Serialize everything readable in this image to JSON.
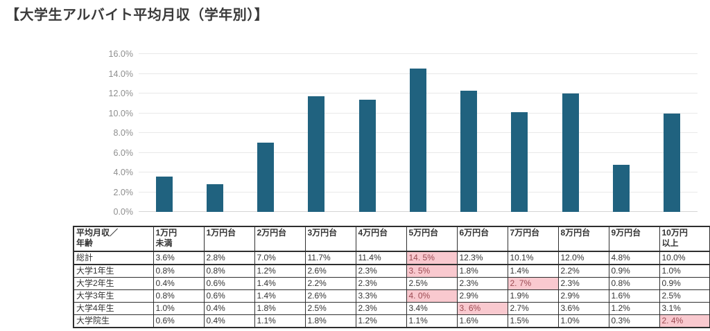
{
  "title": "【大学生アルバイト平均月収（学年別）】",
  "colors": {
    "bar": "#20627f",
    "grid": "#e8e8e8",
    "grid_baseline": "#d4d4d4",
    "axis_label": "#8e8e8e",
    "title_text": "#3a3a3a",
    "table_border": "#2e2e2e",
    "table_text": "#333333",
    "highlight_bg": "#f9c9cf",
    "highlight_text": "#9c4a52"
  },
  "chart_data": {
    "type": "bar",
    "title": "",
    "xlabel": "",
    "ylabel": "",
    "categories": [
      "1万円未満",
      "1万円台",
      "2万円台",
      "3万円台",
      "4万円台",
      "5万円台",
      "6万円台",
      "7万円台",
      "8万円台",
      "9万円台",
      "10万円以上"
    ],
    "values": [
      3.6,
      2.8,
      7.0,
      11.7,
      11.4,
      14.5,
      12.3,
      10.1,
      12.0,
      4.8,
      10.0
    ],
    "series_label": "総計",
    "ylim": [
      0,
      16
    ],
    "ytick_step": 2,
    "ytick_labels": [
      "0.0%",
      "2.0%",
      "4.0%",
      "6.0%",
      "8.0%",
      "10.0%",
      "12.0%",
      "14.0%",
      "16.0%"
    ],
    "grid": true,
    "legend": false
  },
  "table": {
    "header": [
      [
        "平均月収／",
        "年齢"
      ],
      [
        "1万円",
        "未満"
      ],
      [
        "1万円台"
      ],
      [
        "2万円台"
      ],
      [
        "3万円台"
      ],
      [
        "4万円台"
      ],
      [
        "5万円台"
      ],
      [
        "6万円台"
      ],
      [
        "7万円台"
      ],
      [
        "8万円台"
      ],
      [
        "9万円台"
      ],
      [
        "10万円",
        "以上"
      ]
    ],
    "rows": [
      {
        "label": "総計",
        "values": [
          "3.6%",
          "2.8%",
          "7.0%",
          "11.7%",
          "11.4%",
          "14. 5%",
          "12.3%",
          "10.1%",
          "12.0%",
          "4.8%",
          "10.0%"
        ],
        "highlight": 5,
        "emphasized": true
      },
      {
        "label": "大学1年生",
        "values": [
          "0.8%",
          "0.8%",
          "1.2%",
          "2.6%",
          "2.3%",
          "3. 5%",
          "1.8%",
          "1.4%",
          "2.2%",
          "0.9%",
          "1.0%"
        ],
        "highlight": 5,
        "emphasized": false
      },
      {
        "label": "大学2年生",
        "values": [
          "0.4%",
          "0.6%",
          "1.4%",
          "2.2%",
          "2.3%",
          "2.5%",
          "2.3%",
          "2. 7%",
          "2.3%",
          "0.8%",
          "0.9%"
        ],
        "highlight": 7,
        "emphasized": false
      },
      {
        "label": "大学3年生",
        "values": [
          "0.8%",
          "0.6%",
          "1.4%",
          "2.6%",
          "3.3%",
          "4. 0%",
          "2.9%",
          "1.9%",
          "2.9%",
          "1.6%",
          "2.5%"
        ],
        "highlight": 5,
        "emphasized": false
      },
      {
        "label": "大学4年生",
        "values": [
          "1.0%",
          "0.4%",
          "1.8%",
          "2.5%",
          "2.3%",
          "3.4%",
          "3. 6%",
          "2.7%",
          "3.6%",
          "1.2%",
          "3.1%"
        ],
        "highlight": 6,
        "emphasized": false
      },
      {
        "label": "大学院生",
        "values": [
          "0.6%",
          "0.4%",
          "1.1%",
          "1.8%",
          "1.2%",
          "1.1%",
          "1.6%",
          "1.5%",
          "1.0%",
          "0.3%",
          "2. 4%"
        ],
        "highlight": 10,
        "emphasized": false
      }
    ]
  }
}
